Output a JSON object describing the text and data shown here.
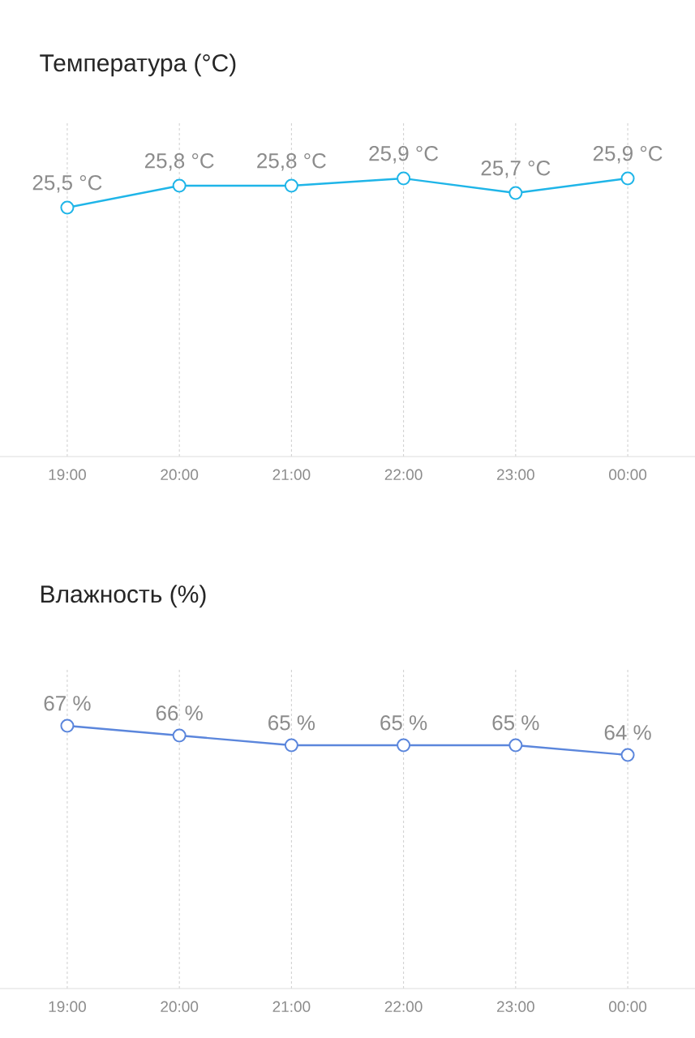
{
  "chart_data": [
    {
      "type": "line",
      "title": "Температура (°C)",
      "x": [
        19,
        20,
        21,
        22,
        23,
        24
      ],
      "values": [
        25.5,
        25.8,
        25.8,
        25.9,
        25.7,
        25.9
      ],
      "color": "#1fb5e8",
      "value_labels": [
        "25,5 °C",
        "25,8 °C",
        "25,8 °C",
        "25,9 °C",
        "25,7 °C",
        "25,9 °C"
      ],
      "xlim": [
        18.4,
        24.6
      ],
      "xticks": [
        {
          "value": 19,
          "label": "19:00"
        },
        {
          "value": 20,
          "label": "20:00"
        },
        {
          "value": 21,
          "label": "21:00"
        },
        {
          "value": 22,
          "label": "22:00"
        },
        {
          "value": 23,
          "label": "23:00"
        },
        {
          "value": 24,
          "label": "00:00"
        }
      ],
      "grid": "x",
      "marker": "circle",
      "tick_labels": "x"
    },
    {
      "type": "line",
      "title": "Влажность (%)",
      "x": [
        19,
        20,
        21,
        22,
        23,
        24
      ],
      "values": [
        67,
        66,
        65,
        65,
        65,
        64
      ],
      "color": "#5b86dc",
      "value_labels": [
        "67 %",
        "66 %",
        "65 %",
        "65 %",
        "65 %",
        "64 %"
      ],
      "xlim": [
        18.4,
        24.6
      ],
      "xticks": [
        {
          "value": 19,
          "label": "19:00"
        },
        {
          "value": 20,
          "label": "20:00"
        },
        {
          "value": 21,
          "label": "21:00"
        },
        {
          "value": 22,
          "label": "22:00"
        },
        {
          "value": 23,
          "label": "23:00"
        },
        {
          "value": 24,
          "label": "00:00"
        }
      ],
      "grid": "x",
      "marker": "circle",
      "tick_labels": "x"
    }
  ]
}
